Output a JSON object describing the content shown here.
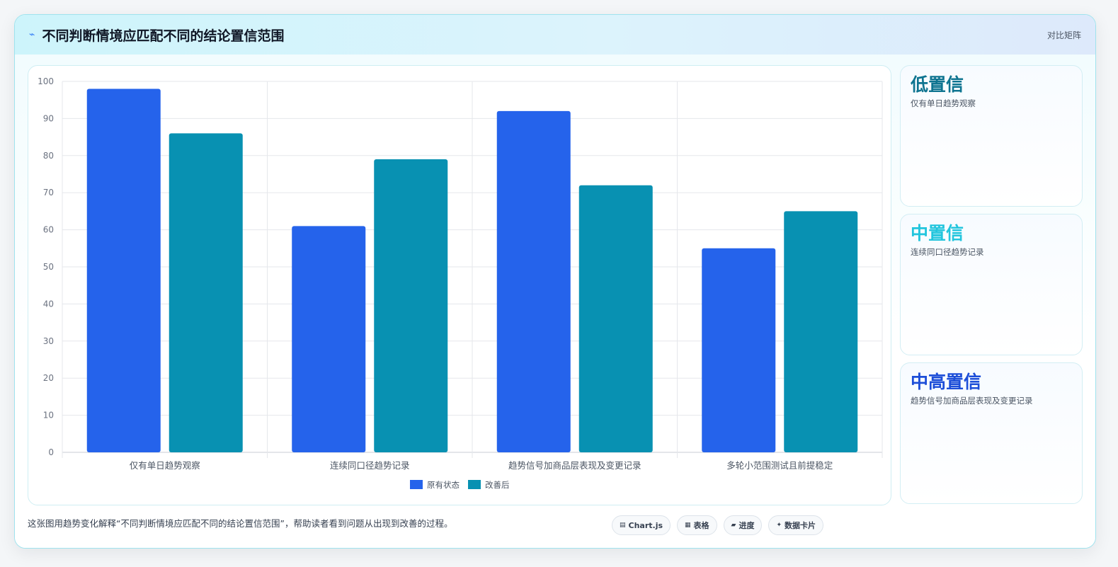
{
  "header": {
    "icon": "lightning-icon",
    "title": "不同判断情境应匹配不同的结论置信范围",
    "mode_label": "对比矩阵"
  },
  "colors": {
    "series_original": "#2563eb",
    "series_improved": "#0891b2",
    "low_confidence": "#0e7490",
    "mid_confidence": "#22c5dd",
    "high_confidence": "#1d4ed8"
  },
  "chart_data": {
    "type": "bar",
    "categories": [
      "仅有单日趋势观察",
      "连续同口径趋势记录",
      "趋势信号加商品层表现及变更记录",
      "多轮小范围测试且前提稳定"
    ],
    "series": [
      {
        "name": "原有状态",
        "values": [
          98,
          61,
          92,
          55
        ]
      },
      {
        "name": "改善后",
        "values": [
          86,
          79,
          72,
          65
        ]
      }
    ],
    "ylim": [
      0,
      100
    ],
    "yticks": [
      0,
      10,
      20,
      30,
      40,
      50,
      60,
      70,
      80,
      90,
      100
    ],
    "grid": true,
    "legend_position": "bottom"
  },
  "side_cards": [
    {
      "level": "低置信",
      "desc": "仅有单日趋势观察"
    },
    {
      "level": "中置信",
      "desc": "连续同口径趋势记录"
    },
    {
      "level": "中高置信",
      "desc": "趋势信号加商品层表现及变更记录"
    }
  ],
  "footer": {
    "caption": "这张图用趋势变化解释“不同判断情境应匹配不同的结论置信范围”，帮助读者看到问题从出现到改善的过程。",
    "tags": [
      {
        "icon": "chart-icon",
        "glyph": "▤",
        "label": "Chart.js"
      },
      {
        "icon": "table-icon",
        "glyph": "▦",
        "label": "表格"
      },
      {
        "icon": "progress-icon",
        "glyph": "▰",
        "label": "进度"
      },
      {
        "icon": "sparkle-icon",
        "glyph": "✦",
        "label": "数据卡片"
      }
    ]
  }
}
